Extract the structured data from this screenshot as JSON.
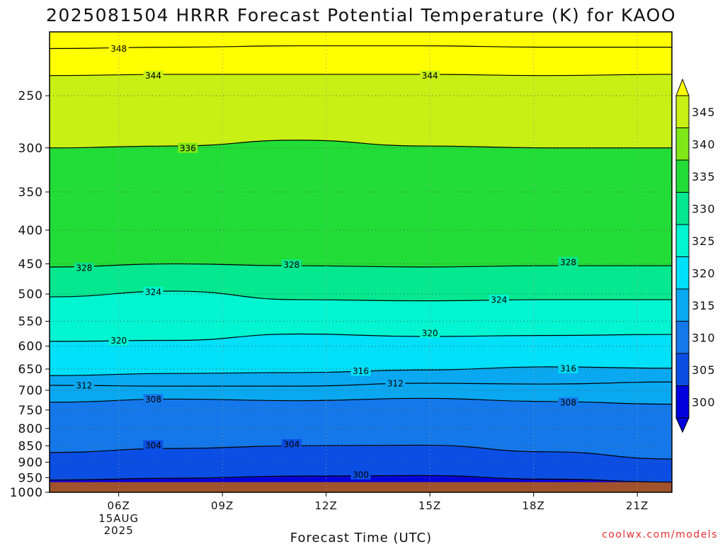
{
  "chart_data": {
    "type": "heatmap",
    "title": "2025081504 HRRR Forecast Potential Temperature (K) for KAOO",
    "xlabel": "Forecast Time (UTC)",
    "ylabel": "",
    "credit": "coolwx.com/models",
    "x_ticks": [
      {
        "label": "06Z",
        "sublabels": [
          "15AUG",
          "2025"
        ],
        "hour": 6
      },
      {
        "label": "09Z",
        "hour": 9
      },
      {
        "label": "12Z",
        "hour": 12
      },
      {
        "label": "15Z",
        "hour": 15
      },
      {
        "label": "18Z",
        "hour": 18
      },
      {
        "label": "21Z",
        "hour": 21
      }
    ],
    "xlim_hours": [
      4,
      22
    ],
    "y_ticks": [
      "250",
      "300",
      "350",
      "400",
      "450",
      "500",
      "550",
      "600",
      "650",
      "700",
      "750",
      "800",
      "850",
      "900",
      "950",
      "1000"
    ],
    "ylim_hPa": [
      200,
      1000
    ],
    "y_scale": "log",
    "grid": true,
    "colorbar": {
      "labels": [
        "345",
        "340",
        "335",
        "330",
        "325",
        "320",
        "315",
        "310",
        "305",
        "300"
      ],
      "levels": [
        300,
        305,
        310,
        315,
        320,
        325,
        330,
        335,
        340,
        345
      ],
      "colors": [
        "#0000dd",
        "#0a4ee4",
        "#1478ea",
        "#0aa8f0",
        "#00e0f8",
        "#00f5d0",
        "#05e890",
        "#22dd38",
        "#80e818",
        "#c8f014",
        "#ffff00"
      ],
      "extend": "both"
    },
    "ground_color": "#a0522d",
    "surface_pressure_hPa": 965,
    "series": [
      {
        "theta": 348,
        "pressure": [
          212,
          211,
          210,
          210,
          211,
          211
        ]
      },
      {
        "theta": 344,
        "pressure": [
          233,
          232,
          232,
          232,
          233,
          232
        ]
      },
      {
        "theta": 336,
        "pressure": [
          300,
          298,
          292,
          298,
          300,
          300
        ]
      },
      {
        "theta": 328,
        "pressure": [
          455,
          450,
          453,
          455,
          453,
          453
        ]
      },
      {
        "theta": 324,
        "pressure": [
          505,
          495,
          510,
          512,
          510,
          510
        ]
      },
      {
        "theta": 320,
        "pressure": [
          590,
          588,
          575,
          580,
          578,
          576
        ]
      },
      {
        "theta": 316,
        "pressure": [
          665,
          660,
          658,
          652,
          645,
          648
        ]
      },
      {
        "theta": 312,
        "pressure": [
          688,
          690,
          690,
          683,
          685,
          680
        ]
      },
      {
        "theta": 308,
        "pressure": [
          730,
          722,
          726,
          720,
          728,
          735
        ]
      },
      {
        "theta": 304,
        "pressure": [
          870,
          858,
          850,
          848,
          868,
          890
        ]
      },
      {
        "theta": 300,
        "pressure": [
          958,
          952,
          945,
          943,
          955,
          965
        ]
      }
    ],
    "contour_labels": [
      {
        "text": "348",
        "hour": 6.0,
        "pressure": 212
      },
      {
        "text": "344",
        "hour": 7.0,
        "pressure": 233
      },
      {
        "text": "344",
        "hour": 15.0,
        "pressure": 233
      },
      {
        "text": "336",
        "hour": 8.0,
        "pressure": 300
      },
      {
        "text": "328",
        "hour": 5.0,
        "pressure": 456
      },
      {
        "text": "328",
        "hour": 11.0,
        "pressure": 451
      },
      {
        "text": "328",
        "hour": 19.0,
        "pressure": 447
      },
      {
        "text": "324",
        "hour": 7.0,
        "pressure": 496
      },
      {
        "text": "324",
        "hour": 17.0,
        "pressure": 510
      },
      {
        "text": "320",
        "hour": 6.0,
        "pressure": 588
      },
      {
        "text": "320",
        "hour": 15.0,
        "pressure": 573
      },
      {
        "text": "316",
        "hour": 13.0,
        "pressure": 654
      },
      {
        "text": "316",
        "hour": 19.0,
        "pressure": 648
      },
      {
        "text": "312",
        "hour": 5.0,
        "pressure": 688
      },
      {
        "text": "312",
        "hour": 14.0,
        "pressure": 683
      },
      {
        "text": "308",
        "hour": 7.0,
        "pressure": 722
      },
      {
        "text": "308",
        "hour": 19.0,
        "pressure": 730
      },
      {
        "text": "304",
        "hour": 7.0,
        "pressure": 848
      },
      {
        "text": "304",
        "hour": 11.0,
        "pressure": 845
      },
      {
        "text": "300",
        "hour": 13.0,
        "pressure": 940
      }
    ]
  }
}
